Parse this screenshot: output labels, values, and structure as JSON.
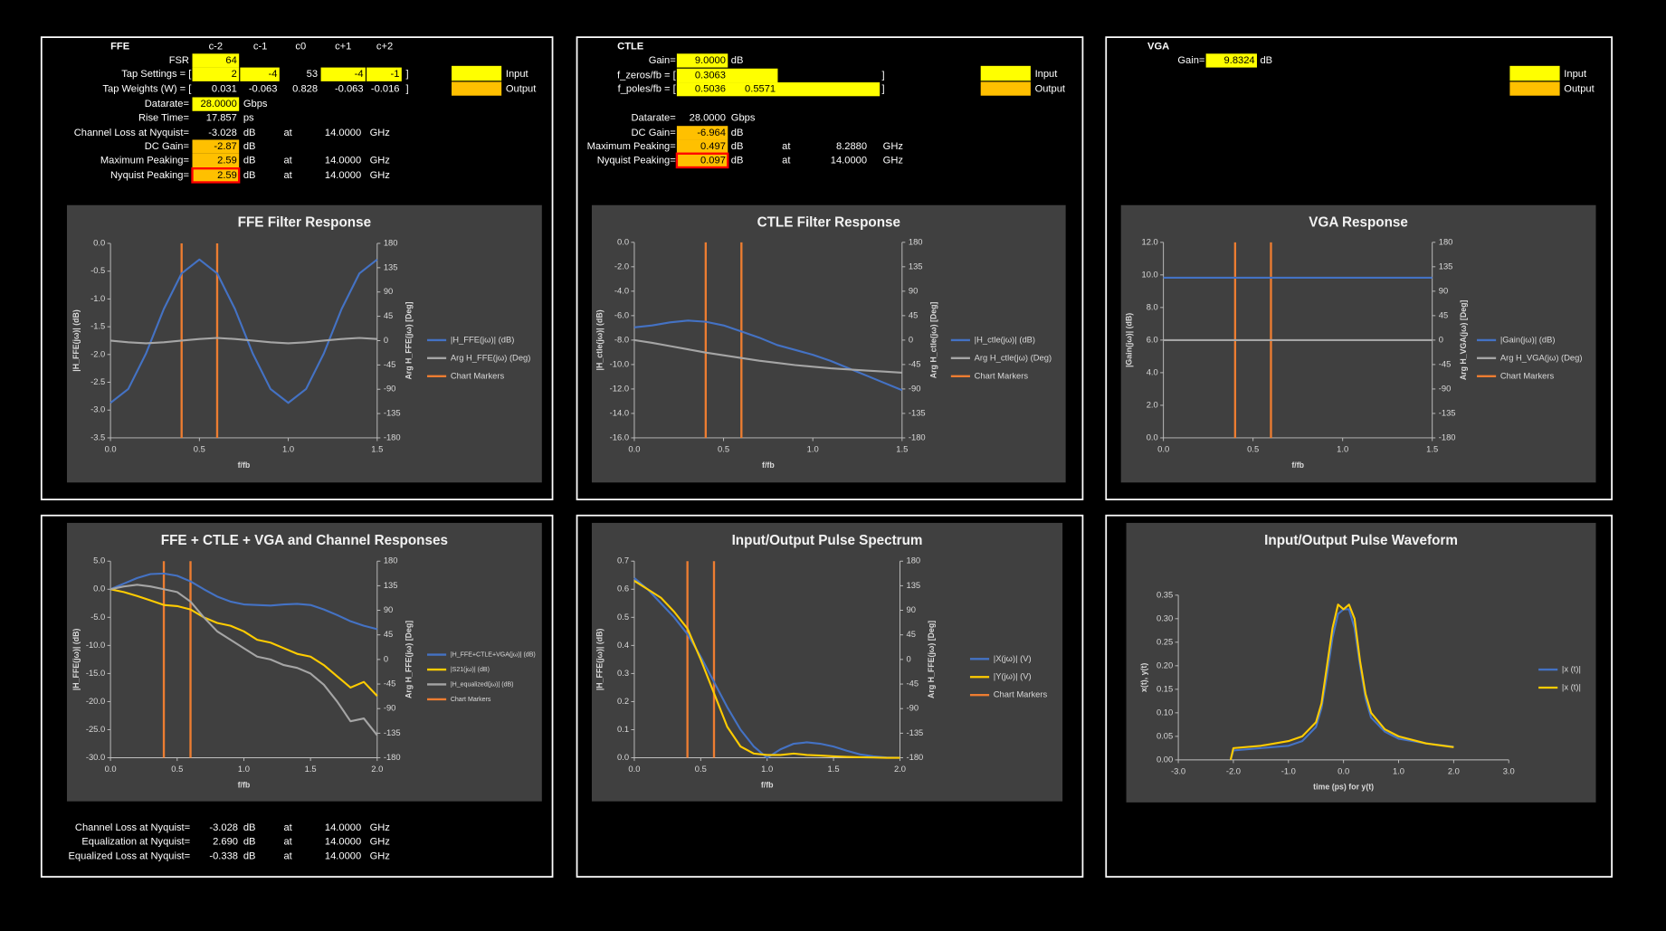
{
  "ffe": {
    "title": "FFE",
    "columns": [
      "c-2",
      "c-1",
      "c0",
      "c+1",
      "c+2"
    ],
    "fsr": {
      "label": "FSR",
      "value": "64"
    },
    "tap_settings": {
      "label": "Tap Settings = [",
      "values": [
        "2",
        "-4",
        "53",
        "-4",
        "-1"
      ],
      "close": "]"
    },
    "tap_weights": {
      "label": "Tap Weights (W) = [",
      "values": [
        "0.031",
        "-0.063",
        "0.828",
        "-0.063",
        "-0.016"
      ],
      "close": "]"
    },
    "rows": [
      {
        "label": "Datarate=",
        "value": "28.0000",
        "unit": "Gbps"
      },
      {
        "label": "Rise Time=",
        "value": "17.857",
        "unit": "ps"
      },
      {
        "label": "Channel Loss at Nyquist=",
        "value": "-3.028",
        "unit": "dB",
        "at": "at",
        "freq": "14.0000",
        "freq_unit": "GHz"
      },
      {
        "label": "DC Gain=",
        "value": "-2.87",
        "unit": "dB"
      },
      {
        "label": "Maximum Peaking=",
        "value": "2.59",
        "unit": "dB",
        "at": "at",
        "freq": "14.0000",
        "freq_unit": "GHz"
      },
      {
        "label": "Nyquist Peaking=",
        "value": "2.59",
        "unit": "dB",
        "at": "at",
        "freq": "14.0000",
        "freq_unit": "GHz"
      }
    ],
    "legend": [
      "Input",
      "Output"
    ]
  },
  "ctle": {
    "title": "CTLE",
    "gain": {
      "label": "Gain=",
      "value": "9.0000",
      "unit": "dB"
    },
    "f_zeros": {
      "label": "f_zeros/fb = [",
      "values": [
        "0.3063"
      ],
      "close": "]"
    },
    "f_poles": {
      "label": "f_poles/fb = [",
      "values": [
        "0.5036",
        "0.5571"
      ],
      "close": "]"
    },
    "rows": [
      {
        "label": "Datarate=",
        "value": "28.0000",
        "unit": "Gbps"
      },
      {
        "label": "DC Gain=",
        "value": "-6.964",
        "unit": "dB"
      },
      {
        "label": "Maximum Peaking=",
        "value": "0.497",
        "unit": "dB",
        "at": "at",
        "freq": "8.2880",
        "freq_unit": "GHz"
      },
      {
        "label": "Nyquist Peaking=",
        "value": "0.097",
        "unit": "dB",
        "at": "at",
        "freq": "14.0000",
        "freq_unit": "GHz"
      }
    ],
    "legend": [
      "Input",
      "Output"
    ]
  },
  "vga": {
    "title": "VGA",
    "gain": {
      "label": "Gain=",
      "value": "9.8324",
      "unit": "dB"
    },
    "legend": [
      "Input",
      "Output"
    ]
  },
  "summary": {
    "rows": [
      {
        "label": "Channel Loss at Nyquist=",
        "value": "-3.028",
        "unit": "dB",
        "at": "at",
        "freq": "14.0000",
        "freq_unit": "GHz"
      },
      {
        "label": "Equalization at Nyquist=",
        "value": "2.690",
        "unit": "dB",
        "at": "at",
        "freq": "14.0000",
        "freq_unit": "GHz"
      },
      {
        "label": "Equalized Loss at Nyquist=",
        "value": "-0.338",
        "unit": "dB",
        "at": "at",
        "freq": "14.0000",
        "freq_unit": "GHz"
      }
    ]
  },
  "chart_data": [
    {
      "type": "line",
      "title": "FFE Filter Response",
      "x_label": "f/fb",
      "y_label": "|H_FFE(jω)| (dB)",
      "y2_label": "Arg H_FFE(jω) [Deg]",
      "x": [
        0,
        0.1,
        0.2,
        0.3,
        0.4,
        0.5,
        0.6,
        0.7,
        0.8,
        0.9,
        1.0,
        1.1,
        1.2,
        1.3,
        1.4,
        1.5
      ],
      "xlim": [
        0,
        1.5
      ],
      "xticks": [
        {
          "value": 0,
          "label": "0.0"
        },
        0.5,
        {
          "value": 1,
          "label": "1.0"
        },
        1.5
      ],
      "ylim": [
        -3.5,
        0
      ],
      "yticks": [
        -3.5,
        {
          "value": -3,
          "label": "-3.0"
        },
        -2.5,
        {
          "value": -2,
          "label": "-2.0"
        },
        -1.5,
        {
          "value": -1,
          "label": "-1.0"
        },
        -0.5,
        {
          "value": 0,
          "label": "0.0"
        }
      ],
      "y2lim": [
        -180,
        180
      ],
      "y2ticks": [
        -180,
        -135,
        -90,
        -45,
        0,
        45,
        90,
        135,
        180
      ],
      "series": [
        {
          "name": "|H_FFE(jω)| (dB)",
          "color": "#4472c4",
          "values": [
            -2.87,
            -2.62,
            -1.98,
            -1.18,
            -0.54,
            -0.29,
            -0.54,
            -1.18,
            -1.98,
            -2.62,
            -2.87,
            -2.62,
            -1.98,
            -1.18,
            -0.54,
            -0.29
          ]
        },
        {
          "name": "Arg H_FFE(jω) (Deg)",
          "color": "#a5a5a5",
          "axis": "y2",
          "values": [
            0,
            -3,
            -5,
            -3,
            0,
            3,
            5,
            3,
            0,
            -3,
            -5,
            -3,
            0,
            3,
            5,
            3
          ]
        }
      ],
      "markers": {
        "name": "Chart Markers",
        "color": "#ed7d31",
        "x": [
          0.4,
          0.6
        ]
      }
    },
    {
      "type": "line",
      "title": "CTLE Filter Response",
      "x_label": "f/fb",
      "y_label": "|H_ctle(jω)| (dB)",
      "y2_label": "Arg H_ctle(jω) [Deg]",
      "x": [
        0,
        0.1,
        0.2,
        0.3,
        0.4,
        0.5,
        0.6,
        0.7,
        0.8,
        0.9,
        1.0,
        1.1,
        1.2,
        1.3,
        1.4,
        1.5
      ],
      "xlim": [
        0,
        1.5
      ],
      "xticks": [
        {
          "value": 0,
          "label": "0.0"
        },
        0.5,
        {
          "value": 1,
          "label": "1.0"
        },
        1.5
      ],
      "ylim": [
        -16,
        0
      ],
      "yticks": [
        {
          "value": -16,
          "label": "-16.0"
        },
        {
          "value": -14,
          "label": "-14.0"
        },
        {
          "value": -12,
          "label": "-12.0"
        },
        {
          "value": -10,
          "label": "-10.0"
        },
        {
          "value": -8,
          "label": "-8.0"
        },
        {
          "value": -6,
          "label": "-6.0"
        },
        {
          "value": -4,
          "label": "-4.0"
        },
        {
          "value": -2,
          "label": "-2.0"
        },
        {
          "value": 0,
          "label": "0.0"
        }
      ],
      "y2lim": [
        -180,
        180
      ],
      "y2ticks": [
        -180,
        -135,
        -90,
        -45,
        0,
        45,
        90,
        135,
        180
      ],
      "series": [
        {
          "name": "|H_ctle(jω)| (dB)",
          "color": "#4472c4",
          "values": [
            -6.96,
            -6.8,
            -6.55,
            -6.4,
            -6.5,
            -6.8,
            -7.3,
            -7.8,
            -8.4,
            -8.8,
            -9.2,
            -9.7,
            -10.3,
            -10.9,
            -11.5,
            -12.1
          ]
        },
        {
          "name": "Arg H_ctle(jω) (Deg)",
          "color": "#a5a5a5",
          "axis": "y2",
          "values": [
            0,
            -5,
            -11,
            -17,
            -23,
            -28,
            -33,
            -38,
            -42,
            -46,
            -49,
            -52,
            -54,
            -56,
            -58,
            -60
          ]
        }
      ],
      "markers": {
        "name": "Chart Markers",
        "color": "#ed7d31",
        "x": [
          0.4,
          0.6
        ]
      }
    },
    {
      "type": "line",
      "title": "VGA Response",
      "x_label": "f/fb",
      "y_label": "|Gain(jω)| (dB)",
      "y2_label": "Arg H_VGA(jω) [Deg]",
      "x": [
        0,
        0.1,
        0.2,
        0.3,
        0.4,
        0.5,
        0.6,
        0.7,
        0.8,
        0.9,
        1.0,
        1.1,
        1.2,
        1.3,
        1.4,
        1.5
      ],
      "xlim": [
        0,
        1.5
      ],
      "xticks": [
        {
          "value": 0,
          "label": "0.0"
        },
        0.5,
        {
          "value": 1,
          "label": "1.0"
        },
        1.5
      ],
      "ylim": [
        0,
        12
      ],
      "yticks": [
        {
          "value": 0,
          "label": "0.0"
        },
        {
          "value": 2,
          "label": "2.0"
        },
        {
          "value": 4,
          "label": "4.0"
        },
        {
          "value": 6,
          "label": "6.0"
        },
        {
          "value": 8,
          "label": "8.0"
        },
        {
          "value": 10,
          "label": "10.0"
        },
        {
          "value": 12,
          "label": "12.0"
        }
      ],
      "y2lim": [
        -180,
        180
      ],
      "y2ticks": [
        -180,
        -135,
        -90,
        -45,
        0,
        45,
        90,
        135,
        180
      ],
      "series": [
        {
          "name": "|Gain(jω)| (dB)",
          "color": "#4472c4",
          "values": [
            9.83,
            9.83,
            9.83,
            9.83,
            9.83,
            9.83,
            9.83,
            9.83,
            9.83,
            9.83,
            9.83,
            9.83,
            9.83,
            9.83,
            9.83,
            9.83
          ]
        },
        {
          "name": "Arg H_VGA(jω) (Deg)",
          "color": "#a5a5a5",
          "axis": "y2",
          "values": [
            0,
            0,
            0,
            0,
            0,
            0,
            0,
            0,
            0,
            0,
            0,
            0,
            0,
            0,
            0,
            0
          ]
        }
      ],
      "markers": {
        "name": "Chart Markers",
        "color": "#ed7d31",
        "x": [
          0.4,
          0.6
        ]
      }
    },
    {
      "type": "line",
      "title": "FFE + CTLE + VGA and Channel Responses",
      "x_label": "f/fb",
      "y_label": "|H_FFE(jω)| (dB)",
      "y2_label": "Arg H_FFE(jω) [Deg]",
      "x": [
        0,
        0.1,
        0.2,
        0.3,
        0.4,
        0.5,
        0.6,
        0.7,
        0.8,
        0.9,
        1.0,
        1.1,
        1.2,
        1.3,
        1.4,
        1.5,
        1.6,
        1.7,
        1.8,
        1.9,
        2.0
      ],
      "xlim": [
        0,
        2
      ],
      "xticks": [
        {
          "value": 0,
          "label": "0.0"
        },
        0.5,
        {
          "value": 1,
          "label": "1.0"
        },
        1.5,
        {
          "value": 2,
          "label": "2.0"
        }
      ],
      "ylim": [
        -30,
        5
      ],
      "yticks": [
        {
          "value": -30,
          "label": "-30.0"
        },
        {
          "value": -25,
          "label": "-25.0"
        },
        {
          "value": -20,
          "label": "-20.0"
        },
        {
          "value": -15,
          "label": "-15.0"
        },
        {
          "value": -10,
          "label": "-10.0"
        },
        {
          "value": -5,
          "label": "-5.0"
        },
        {
          "value": 0,
          "label": "0.0"
        },
        {
          "value": 5,
          "label": "5.0"
        }
      ],
      "y2lim": [
        -180,
        180
      ],
      "y2ticks": [
        -180,
        -135,
        -90,
        -45,
        0,
        45,
        90,
        135,
        180
      ],
      "series": [
        {
          "name": "|H_FFE+CTLE+VGA(jω)| (dB)",
          "color": "#4472c4",
          "values": [
            0,
            1,
            2,
            2.7,
            2.8,
            2.4,
            1.4,
            0,
            -1.3,
            -2.2,
            -2.7,
            -2.8,
            -2.9,
            -2.7,
            -2.6,
            -2.8,
            -3.6,
            -4.6,
            -5.7,
            -6.5,
            -7.1
          ]
        },
        {
          "name": "|S21(jω)| (dB)",
          "color": "#ffcc00",
          "values": [
            0,
            -0.5,
            -1.2,
            -2,
            -2.8,
            -3,
            -3.6,
            -5,
            -6,
            -6.5,
            -7.5,
            -9,
            -9.5,
            -10.5,
            -11.5,
            -12,
            -13.5,
            -15.5,
            -17.5,
            -16.5,
            -19
          ]
        },
        {
          "name": "|H_equalized(jω)| (dB)",
          "color": "#a5a5a5",
          "values": [
            0,
            0.5,
            0.8,
            0.5,
            0,
            -0.5,
            -2.2,
            -5,
            -7.5,
            -9,
            -10.5,
            -12,
            -12.5,
            -13.5,
            -14,
            -15,
            -17,
            -20,
            -23.5,
            -23,
            -26
          ]
        }
      ],
      "markers": {
        "name": "Chart Markers",
        "color": "#ed7d31",
        "x": [
          0.4,
          0.6
        ]
      }
    },
    {
      "type": "line",
      "title": "Input/Output Pulse Spectrum",
      "x_label": "f/fb",
      "y_label": "|H_FFE(jω)| (dB)",
      "y2_label": "Arg H_FFE(jω) [Deg]",
      "x": [
        0,
        0.1,
        0.2,
        0.3,
        0.4,
        0.5,
        0.6,
        0.7,
        0.8,
        0.9,
        1.0,
        1.1,
        1.2,
        1.3,
        1.4,
        1.5,
        1.6,
        1.7,
        1.8,
        1.9,
        2.0
      ],
      "xlim": [
        0,
        2
      ],
      "xticks": [
        {
          "value": 0,
          "label": "0.0"
        },
        0.5,
        {
          "value": 1,
          "label": "1.0"
        },
        1.5,
        {
          "value": 2,
          "label": "2.0"
        }
      ],
      "ylim": [
        0,
        0.7
      ],
      "yticks": [
        {
          "value": 0,
          "label": "0.0"
        },
        0.1,
        0.2,
        0.3,
        0.4,
        0.5,
        0.6,
        0.7
      ],
      "y2lim": [
        -180,
        180
      ],
      "y2ticks": [
        -180,
        -135,
        -90,
        -45,
        0,
        45,
        90,
        135,
        180
      ],
      "series": [
        {
          "name": "|X(jω)| (V)",
          "color": "#4472c4",
          "values": [
            0.64,
            0.6,
            0.55,
            0.5,
            0.44,
            0.36,
            0.27,
            0.18,
            0.1,
            0.04,
            0,
            0.03,
            0.05,
            0.055,
            0.05,
            0.04,
            0.025,
            0.012,
            0.005,
            0.001,
            0
          ]
        },
        {
          "name": "|Y(jω)| (V)",
          "color": "#ffcc00",
          "values": [
            0.63,
            0.6,
            0.57,
            0.52,
            0.46,
            0.35,
            0.23,
            0.11,
            0.04,
            0.015,
            0.01,
            0.01,
            0.015,
            0.01,
            0.008,
            0.005,
            0.003,
            0.002,
            0.001,
            0,
            0
          ]
        }
      ],
      "markers": {
        "name": "Chart Markers",
        "color": "#ed7d31",
        "x": [
          0.4,
          0.6
        ]
      }
    },
    {
      "type": "line",
      "title": "Input/Output Pulse Waveform",
      "x_label": "time (ps) for y(t)",
      "y_label": "x(t), y(t)",
      "x": [
        -2.05,
        -2,
        -1.5,
        -1,
        -0.75,
        -0.5,
        -0.4,
        -0.3,
        -0.2,
        -0.1,
        0,
        0.1,
        0.2,
        0.3,
        0.4,
        0.5,
        0.75,
        1,
        1.5,
        2
      ],
      "xlim": [
        -3,
        3
      ],
      "xticks": [
        {
          "value": -3,
          "label": "-3.0"
        },
        {
          "value": -2,
          "label": "-2.0"
        },
        {
          "value": -1,
          "label": "-1.0"
        },
        {
          "value": 0,
          "label": "0.0"
        },
        {
          "value": 1,
          "label": "1.0"
        },
        {
          "value": 2,
          "label": "2.0"
        },
        {
          "value": 3,
          "label": "3.0"
        }
      ],
      "ylim": [
        0,
        0.35
      ],
      "yticks": [
        {
          "value": 0,
          "label": "0.00"
        },
        0.05,
        {
          "value": 0.1,
          "label": "0.10"
        },
        0.15,
        {
          "value": 0.2,
          "label": "0.20"
        },
        0.25,
        {
          "value": 0.3,
          "label": "0.30"
        },
        0.35
      ],
      "series": [
        {
          "name": "|x (t)|",
          "color": "#4472c4",
          "values": [
            0,
            0.02,
            0.025,
            0.03,
            0.04,
            0.07,
            0.11,
            0.18,
            0.26,
            0.31,
            0.32,
            0.32,
            0.28,
            0.2,
            0.13,
            0.09,
            0.06,
            0.045,
            0.035,
            0.028
          ]
        },
        {
          "name": "|x (t)|",
          "color": "#ffcc00",
          "values": [
            0,
            0.025,
            0.03,
            0.04,
            0.05,
            0.08,
            0.12,
            0.2,
            0.28,
            0.33,
            0.32,
            0.33,
            0.3,
            0.21,
            0.14,
            0.1,
            0.065,
            0.05,
            0.035,
            0.027
          ]
        }
      ]
    }
  ]
}
